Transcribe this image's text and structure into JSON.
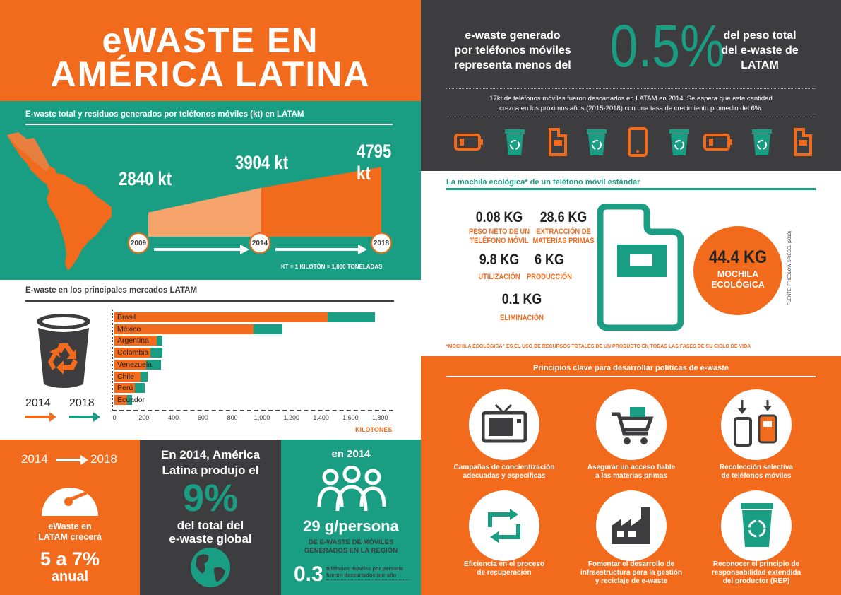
{
  "title": {
    "line1": "eWASTE EN",
    "line2": "AMÉRICA LATINA"
  },
  "growth": {
    "header": "E-waste total y residuos generados por teléfonos móviles (kt) en LATAM",
    "values": [
      {
        "year": "2009",
        "label": "2840 kt",
        "value": 2840
      },
      {
        "year": "2014",
        "label": "3904 kt",
        "value": 3904
      },
      {
        "year": "2018",
        "label": "4795 kt",
        "value": 4795
      }
    ],
    "note": "KT = 1 KILOTÓN = 1,000 TONELADAS"
  },
  "markets": {
    "header": "E-waste en los principales mercados LATAM",
    "legend": {
      "y1": "2014",
      "y2": "2018"
    },
    "axis_label": "KILOTONES",
    "ticks": [
      "0",
      "200",
      "400",
      "600",
      "800",
      "1,000",
      "1,200",
      "1,400",
      "1,600",
      "1,800"
    ]
  },
  "chart_data": {
    "type": "bar",
    "categories": [
      "Brasil",
      "México",
      "Argentina",
      "Colombia",
      "Venezuela",
      "Chile",
      "Perú",
      "Ecuador"
    ],
    "series": [
      {
        "name": "2014",
        "values": [
          1470,
          960,
          290,
          250,
          220,
          180,
          140,
          90
        ]
      },
      {
        "name": "2018",
        "values": [
          1800,
          1160,
          330,
          330,
          320,
          230,
          210,
          120
        ]
      }
    ],
    "xlabel": "KILOTONES",
    "xlim": [
      0,
      1900
    ]
  },
  "bottom": {
    "growth_years": {
      "from": "2014",
      "to": "2018"
    },
    "growth_label_1": "eWaste en",
    "growth_label_2": "LATAM crecerá",
    "growth_rate_1": "5 a 7%",
    "growth_rate_2": "anual",
    "share_line1": "En 2014, América",
    "share_line2": "Latina produjo el",
    "share_pct": "9%",
    "share_line3": "del total del",
    "share_line4": "e-waste global",
    "person_year": "en 2014",
    "person_value": "29 g/persona",
    "person_sub1": "DE E-WASTE DE MÓVILES",
    "person_sub2": "GENERADOS EN LA REGIÓN",
    "phones_value": "0.3",
    "phones_text1": "teléfonos móviles por persona",
    "phones_text2": "fueron descartados por año"
  },
  "phones_stat": {
    "left1": "e-waste generado",
    "left2": "por teléfonos móviles",
    "left3": "representa menos del",
    "pct": "0.5%",
    "right1": "del peso total",
    "right2": "del e-waste de",
    "right3": "LATAM",
    "note1": "17kt de teléfonos móviles  fueron descartados en LATAM en 2014. Se espera que esta cantidad",
    "note2": "crezca en los próximos años (2015-2018) con una tasa de crecimiento promedio del 6%."
  },
  "mochila": {
    "header": "La mochila ecológica* de un teléfono móvil estándar",
    "items": [
      {
        "value": "0.08 KG",
        "label1": "PESO NETO DE UN",
        "label2": "TELÉFONO MÓVIL"
      },
      {
        "value": "28.6 KG",
        "label1": "EXTRACCIÓN DE",
        "label2": "MATERIAS PRIMAS"
      },
      {
        "value": "9.8 KG",
        "label1": "UTILIZACIÓN",
        "label2": ""
      },
      {
        "value": "6 KG",
        "label1": "PRODUCCIÓN",
        "label2": ""
      },
      {
        "value": "0.1 KG",
        "label1": "ELIMINACIÓN",
        "label2": ""
      }
    ],
    "total_value": "44.4 KG",
    "total_label1": "MOCHILA",
    "total_label2": "ECOLÓGICA",
    "source": "FUENTE: FRIEDLOW SPIEGEL (2013)",
    "footnote": "*MOCHILA ECOLÓGICA” ES EL USO DE RECURSOS TOTALES DE UN PRODUCTO EN TODAS LAS FASES DE SU CICLO DE VIDA"
  },
  "principles": {
    "header": "Principios clave para desarrollar políticas de e-waste",
    "items": [
      {
        "icon": "tv-icon",
        "line1": "Campañas de concientización",
        "line2": "adecuadas y específicas",
        "line3": ""
      },
      {
        "icon": "cart-icon",
        "line1": "Asegurar un acceso fiable",
        "line2": "a las materias primas",
        "line3": ""
      },
      {
        "icon": "phones-collect-icon",
        "line1": "Recolección selectiva",
        "line2": "de teléfonos móviles",
        "line3": ""
      },
      {
        "icon": "recycle-arrows-icon",
        "line1": "Eficiencia en el proceso",
        "line2": "de recuperación",
        "line3": ""
      },
      {
        "icon": "factory-icon",
        "line1": "Fomentar el desarrollo de",
        "line2": "infraestructura para la gestión",
        "line3": "y reciclaje de e-waste"
      },
      {
        "icon": "recycle-bin-icon",
        "line1": "Reconocer el principio de",
        "line2": "responsabilidad extendida",
        "line3": "del productor (REP)"
      }
    ]
  },
  "colors": {
    "orange": "#f26a1b",
    "green": "#1a9e83",
    "dark": "#3d3d3f"
  }
}
